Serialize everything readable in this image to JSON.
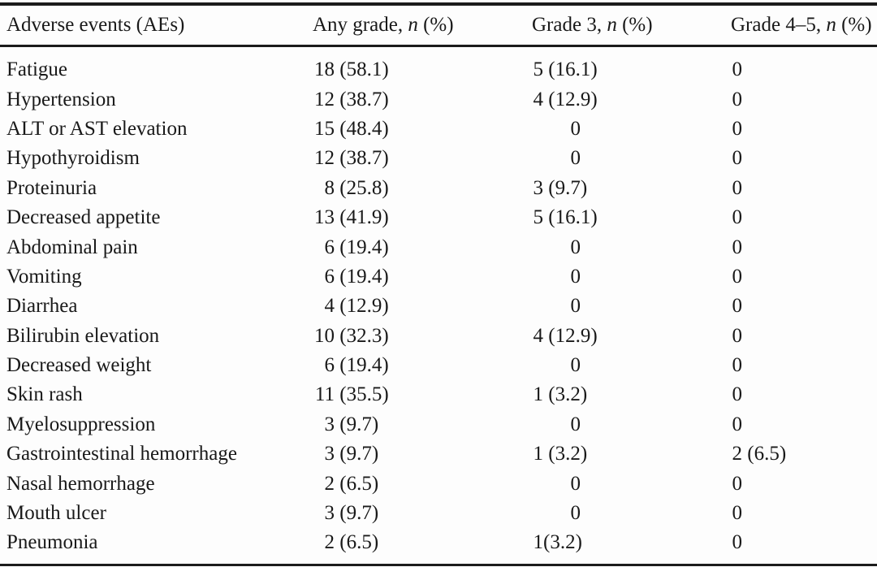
{
  "colors": {
    "text": "#191919",
    "background": "#fdfdfd",
    "rule": "#1b1b1b"
  },
  "table": {
    "columns": [
      {
        "key": "event",
        "label": "Adverse events (AEs)"
      },
      {
        "key": "any_grade",
        "label": "Any grade, n (%)"
      },
      {
        "key": "grade3",
        "label": "Grade 3, n (%)"
      },
      {
        "key": "grade45",
        "label": "Grade 4–5, n (%)"
      }
    ],
    "rows": [
      {
        "event": "Fatigue",
        "any_grade": "18 (58.1)",
        "grade3": "5 (16.1)",
        "grade45": "0"
      },
      {
        "event": "Hypertension",
        "any_grade": "12 (38.7)",
        "grade3": "4 (12.9)",
        "grade45": "0"
      },
      {
        "event": "ALT or AST elevation",
        "any_grade": "15 (48.4)",
        "grade3": "0",
        "grade45": "0"
      },
      {
        "event": "Hypothyroidism",
        "any_grade": "12 (38.7)",
        "grade3": "0",
        "grade45": "0"
      },
      {
        "event": "Proteinuria",
        "any_grade": "8 (25.8)",
        "grade3": "3 (9.7)",
        "grade45": "0"
      },
      {
        "event": "Decreased appetite",
        "any_grade": "13 (41.9)",
        "grade3": "5 (16.1)",
        "grade45": "0"
      },
      {
        "event": "Abdominal pain",
        "any_grade": "6 (19.4)",
        "grade3": "0",
        "grade45": "0"
      },
      {
        "event": "Vomiting",
        "any_grade": "6 (19.4)",
        "grade3": "0",
        "grade45": "0"
      },
      {
        "event": "Diarrhea",
        "any_grade": "4 (12.9)",
        "grade3": "0",
        "grade45": "0"
      },
      {
        "event": "Bilirubin elevation",
        "any_grade": "10 (32.3)",
        "grade3": "4 (12.9)",
        "grade45": "0"
      },
      {
        "event": "Decreased weight",
        "any_grade": "6 (19.4)",
        "grade3": "0",
        "grade45": "0"
      },
      {
        "event": "Skin rash",
        "any_grade": "11 (35.5)",
        "grade3": "1 (3.2)",
        "grade45": "0"
      },
      {
        "event": "Myelosuppression",
        "any_grade": "3 (9.7)",
        "grade3": "0",
        "grade45": "0"
      },
      {
        "event": "Gastrointestinal hemorrhage",
        "any_grade": "3 (9.7)",
        "grade3": "1 (3.2)",
        "grade45": "2 (6.5)"
      },
      {
        "event": "Nasal hemorrhage",
        "any_grade": "2 (6.5)",
        "grade3": "0",
        "grade45": "0"
      },
      {
        "event": "Mouth ulcer",
        "any_grade": "3 (9.7)",
        "grade3": "0",
        "grade45": "0"
      },
      {
        "event": "Pneumonia",
        "any_grade": "2 (6.5)",
        "grade3": "1(3.2)",
        "grade45": "0"
      }
    ]
  }
}
